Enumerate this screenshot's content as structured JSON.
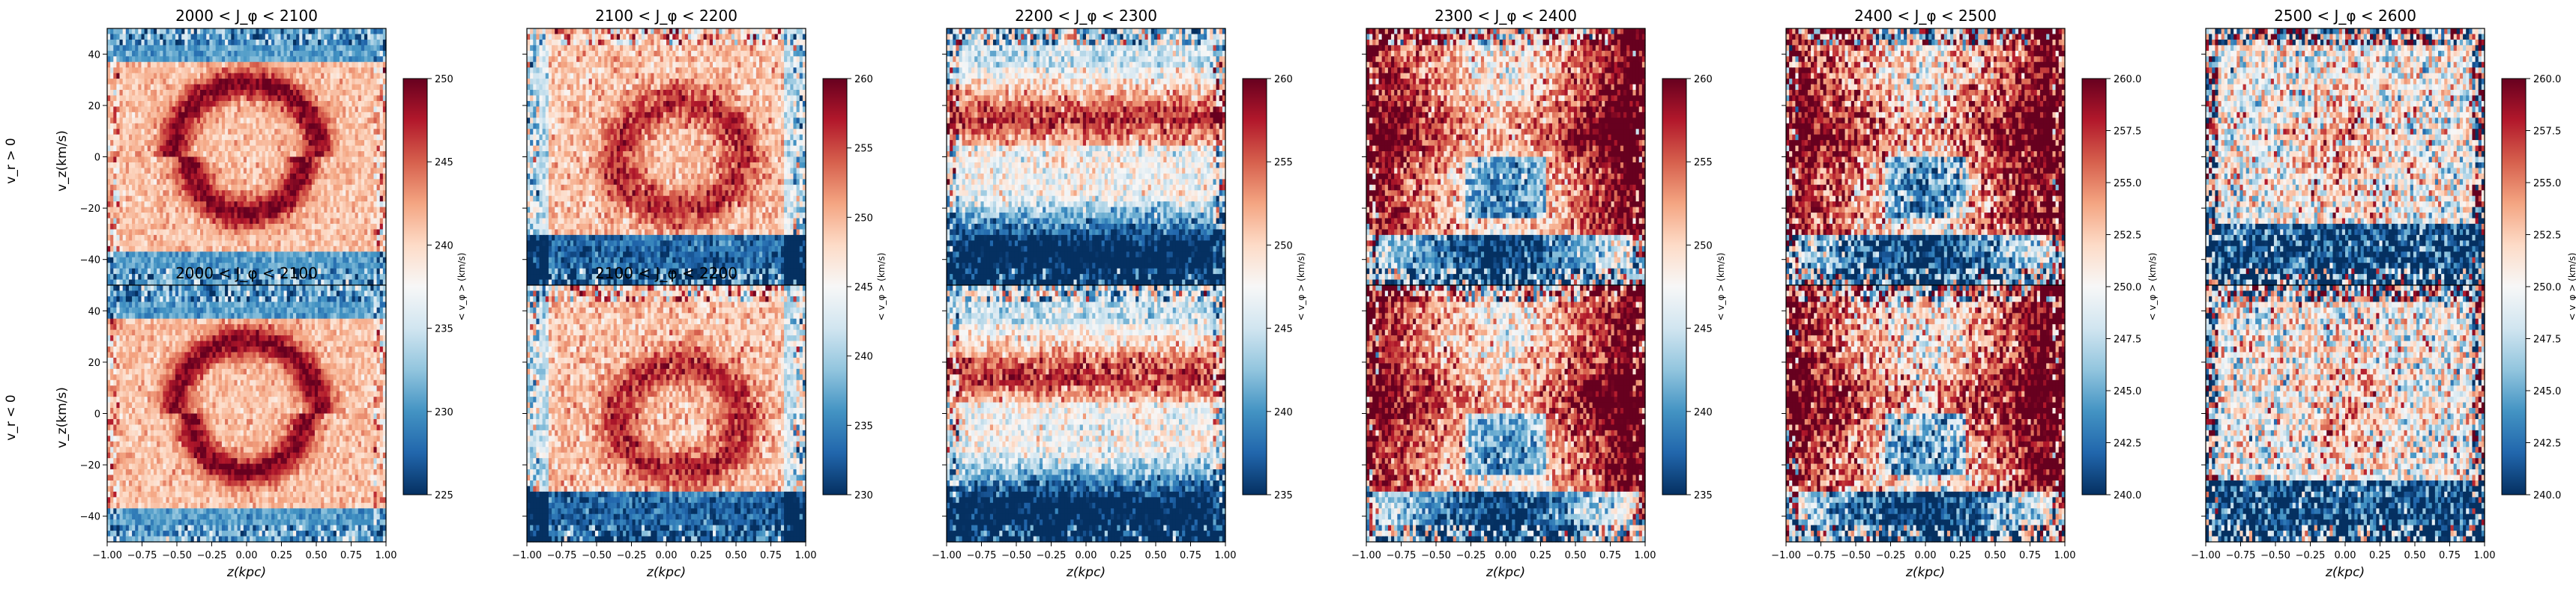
{
  "chart_data": {
    "type": "heatmap",
    "row_labels": [
      "v_r > 0",
      "v_r < 0"
    ],
    "ylabel": "v_z(km/s)",
    "xlabel": "z(kpc)",
    "colorbar_label": "< v_φ > (km/s)",
    "colormap": "RdBu_r",
    "xlim": [
      -1.0,
      1.0
    ],
    "ylim": [
      -50,
      50
    ],
    "xticks": [
      "−1.00",
      "−0.75",
      "−0.50",
      "−0.25",
      "0.00",
      "0.25",
      "0.50",
      "0.75",
      "1.00"
    ],
    "yticks": [
      "40",
      "20",
      "0",
      "−20",
      "−40"
    ],
    "panels": [
      {
        "title": "2000 < J_φ < 2100",
        "row2_title": "2000 < J_φ < 2100",
        "clim": [
          225,
          250
        ],
        "cbar_ticks": [
          "250",
          "245",
          "240",
          "235",
          "230",
          "225"
        ],
        "pattern": "ring",
        "sat": 0.55,
        "noise": 0.35
      },
      {
        "title": "2100 < J_φ < 2200",
        "row2_title": "2100 < J_φ < 2200",
        "clim": [
          230,
          260
        ],
        "cbar_ticks": [
          "260",
          "255",
          "250",
          "245",
          "240",
          "235",
          "230"
        ],
        "pattern": "blob",
        "sat": 0.5,
        "noise": 0.5
      },
      {
        "title": "2200 < J_φ < 2300",
        "row2_title": "",
        "clim": [
          235,
          260
        ],
        "cbar_ticks": [
          "260",
          "255",
          "250",
          "245",
          "240",
          "235"
        ],
        "pattern": "band",
        "sat": 0.7,
        "noise": 0.6
      },
      {
        "title": "2300 < J_φ < 2400",
        "row2_title": "",
        "clim": [
          235,
          260
        ],
        "cbar_ticks": [
          "260",
          "255",
          "250",
          "245",
          "240",
          "235"
        ],
        "pattern": "sides",
        "sat": 0.8,
        "noise": 0.75
      },
      {
        "title": "2400 < J_φ < 2500",
        "row2_title": "",
        "clim": [
          240,
          260
        ],
        "cbar_ticks": [
          "260.0",
          "257.5",
          "255.0",
          "252.5",
          "250.0",
          "247.5",
          "245.0",
          "242.5",
          "240.0"
        ],
        "pattern": "sides",
        "sat": 0.9,
        "noise": 0.95
      },
      {
        "title": "2500 < J_φ < 2600",
        "row2_title": "",
        "clim": [
          240,
          260
        ],
        "cbar_ticks": [
          "260.0",
          "257.5",
          "255.0",
          "252.5",
          "250.0",
          "247.5",
          "245.0",
          "242.5",
          "240.0"
        ],
        "pattern": "noise",
        "sat": 0.7,
        "noise": 1.1
      }
    ]
  }
}
